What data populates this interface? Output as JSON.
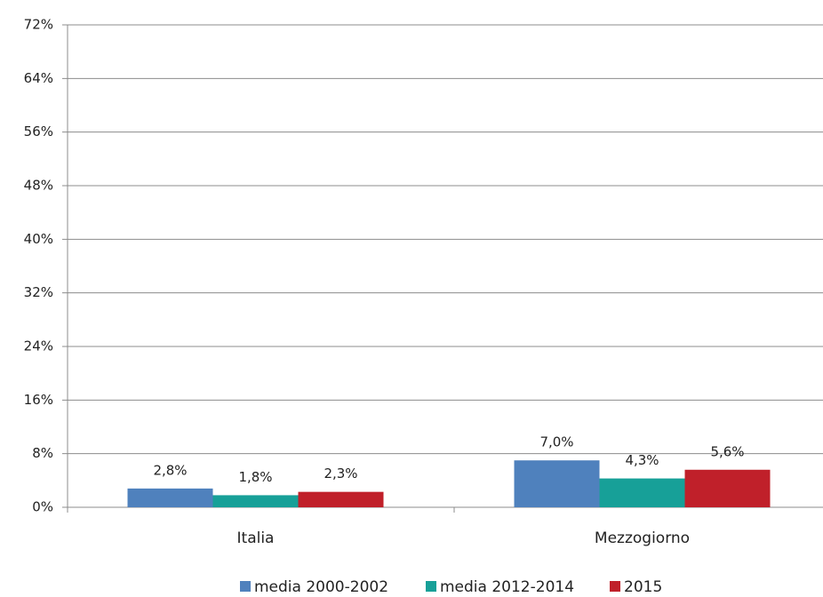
{
  "chart_data": {
    "type": "bar",
    "categories": [
      "Italia",
      "Mezzogiorno"
    ],
    "series": [
      {
        "name": "media 2000-2002",
        "color": "#4f81bd",
        "values": [
          2.8,
          7.0
        ],
        "value_labels": [
          "2,8%",
          "7,0%"
        ]
      },
      {
        "name": "media 2012-2014",
        "color": "#17a098",
        "values": [
          1.8,
          4.3
        ],
        "value_labels": [
          "1,8%",
          "4,3%"
        ]
      },
      {
        "name": "2015",
        "color": "#c0202a",
        "values": [
          2.3,
          5.6
        ],
        "value_labels": [
          "2,3%",
          "5,6%"
        ]
      }
    ],
    "ylim": [
      0,
      72
    ],
    "yticks": [
      {
        "value": 0,
        "label": "0%"
      },
      {
        "value": 8,
        "label": "8%"
      },
      {
        "value": 16,
        "label": "16%"
      },
      {
        "value": 24,
        "label": "24%"
      },
      {
        "value": 32,
        "label": "32%"
      },
      {
        "value": 40,
        "label": "40%"
      },
      {
        "value": 48,
        "label": "48%"
      },
      {
        "value": 56,
        "label": "56%"
      },
      {
        "value": 64,
        "label": "64%"
      },
      {
        "value": 72,
        "label": "72%"
      }
    ],
    "grid": true,
    "legend": "bottom"
  }
}
